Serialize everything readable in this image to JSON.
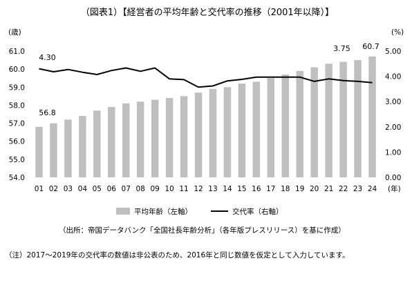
{
  "title": "（図表1）【経営者の平均年齢と交代率の推移（2001年以降）】",
  "source": "（出所：帝国データバンク「全国社長年齢分析」（各年版プレスリリース）を基に作成）",
  "note": "（注）2017～2019年の交代率の数値は非公表のため、2016年と同じ数値を仮定として入力しています。",
  "chart_data": {
    "type": "bar",
    "categories": [
      "01",
      "02",
      "03",
      "04",
      "05",
      "06",
      "07",
      "08",
      "09",
      "10",
      "11",
      "12",
      "13",
      "14",
      "15",
      "16",
      "17",
      "18",
      "19",
      "20",
      "21",
      "22",
      "23",
      "24"
    ],
    "x_unit": "(年)",
    "y_left": {
      "unit": "(歳)",
      "min": 54.0,
      "max": 61.0,
      "ticks": [
        "54.0",
        "55.0",
        "56.0",
        "57.0",
        "58.0",
        "59.0",
        "60.0",
        "61.0"
      ]
    },
    "y_right": {
      "unit": "(%)",
      "min": 0.0,
      "max": 5.0,
      "ticks": [
        "0.00",
        "1.00",
        "2.00",
        "3.00",
        "4.00",
        "5.00"
      ]
    },
    "series": [
      {
        "name": "平均年齢（左軸）",
        "type": "bar",
        "axis": "left",
        "color": "#bfbfbf",
        "values": [
          56.8,
          57.0,
          57.2,
          57.4,
          57.7,
          57.9,
          58.1,
          58.2,
          58.3,
          58.4,
          58.5,
          58.7,
          58.9,
          59.0,
          59.2,
          59.3,
          59.5,
          59.7,
          59.9,
          60.1,
          60.3,
          60.4,
          60.5,
          60.7
        ]
      },
      {
        "name": "交代率（右軸）",
        "type": "line",
        "axis": "right",
        "color": "#000000",
        "values": [
          4.3,
          4.18,
          4.27,
          4.16,
          4.07,
          4.23,
          4.33,
          4.2,
          4.33,
          3.9,
          3.87,
          3.57,
          3.62,
          3.82,
          3.88,
          3.97,
          3.97,
          3.97,
          3.97,
          3.8,
          3.9,
          3.83,
          3.8,
          3.75
        ]
      }
    ],
    "annotations": [
      {
        "text": "4.30",
        "series": 1,
        "index": 0
      },
      {
        "text": "56.8",
        "series": 0,
        "index": 0
      },
      {
        "text": "3.75",
        "series": 1,
        "index": 23
      },
      {
        "text": "60.7",
        "series": 0,
        "index": 23
      }
    ]
  }
}
